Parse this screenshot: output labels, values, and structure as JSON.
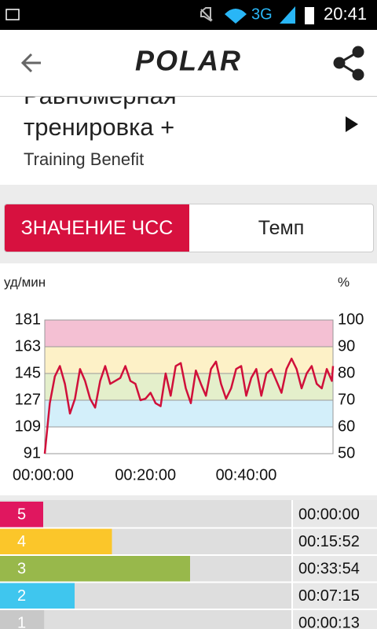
{
  "status_bar": {
    "network": "3G",
    "time": "20:41"
  },
  "app_bar": {
    "logo": "POLAR"
  },
  "header": {
    "title_line1": "Равномерная",
    "title_line2": "тренировка +",
    "subtitle": "Training Benefit"
  },
  "tabs": [
    "ЗНАЧЕНИЕ ЧСС",
    "Темп"
  ],
  "chart_data": {
    "type": "line",
    "y_label": "уд/мин",
    "y2_label": "%",
    "x": [
      0,
      60,
      120,
      180,
      240,
      300,
      360,
      420,
      480,
      540,
      600,
      660,
      720,
      780,
      840,
      900,
      960,
      1020,
      1080,
      1140,
      1200,
      1260,
      1320,
      1380,
      1440,
      1500,
      1560,
      1620,
      1680,
      1740,
      1800,
      1860,
      1920,
      1980,
      2040,
      2100,
      2160,
      2220,
      2280,
      2340,
      2400,
      2460,
      2520,
      2580,
      2640,
      2700,
      2760,
      2820,
      2880,
      2940,
      3000,
      3060,
      3120,
      3180,
      3240,
      3300,
      3360,
      3420,
      3434
    ],
    "series": [
      {
        "color": "#d0103a",
        "values": [
          91,
          125,
          143,
          150,
          138,
          118,
          128,
          148,
          140,
          128,
          122,
          140,
          150,
          138,
          140,
          142,
          150,
          140,
          138,
          127,
          128,
          132,
          125,
          123,
          145,
          130,
          150,
          152,
          135,
          125,
          147,
          138,
          130,
          148,
          153,
          138,
          128,
          135,
          148,
          150,
          130,
          142,
          148,
          130,
          145,
          148,
          140,
          132,
          148,
          155,
          148,
          135,
          145,
          150,
          138,
          135,
          148,
          140,
          150
        ]
      }
    ],
    "xlim": [
      0,
      3434
    ],
    "xticks": [
      {
        "value": 0,
        "label": "00:00:00"
      },
      {
        "value": 1200,
        "label": "00:20:00"
      },
      {
        "value": 2400,
        "label": "00:40:00"
      }
    ],
    "ylim": [
      91,
      181
    ],
    "yticks": [
      91,
      109,
      127,
      145,
      163,
      181
    ],
    "y2lim": [
      50,
      100
    ],
    "y2ticks": [
      50,
      60,
      70,
      80,
      90,
      100
    ],
    "zone_colors": [
      "#ffffff",
      "#d3effa",
      "#e4efcb",
      "#fdf1c7",
      "#f4c0d3"
    ],
    "grid": true
  },
  "zones": [
    {
      "label": "5",
      "color": "#e0175f",
      "value": 0,
      "value_label": "00:00:00"
    },
    {
      "label": "4",
      "color": "#fbc62a",
      "value": 952,
      "value_label": "00:15:52"
    },
    {
      "label": "3",
      "color": "#98b84b",
      "value": 2034,
      "value_label": "00:33:54"
    },
    {
      "label": "2",
      "color": "#3fc6ee",
      "value": 435,
      "value_label": "00:07:15"
    },
    {
      "label": "1",
      "color": "#c8c8c8",
      "value": 13,
      "value_label": "00:00:13"
    }
  ]
}
